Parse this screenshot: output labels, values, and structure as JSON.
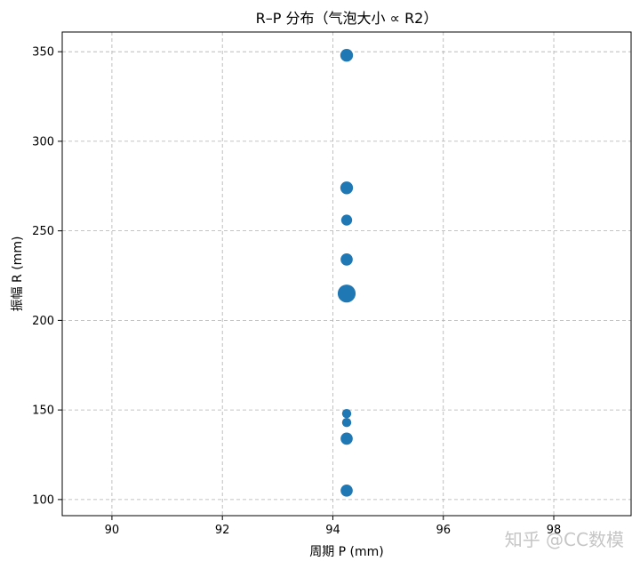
{
  "chart_data": {
    "type": "scatter",
    "title": "R–P 分布（气泡大小 ∝ R2）",
    "xlabel": "周期 P (mm)",
    "ylabel": "振幅 R (mm)",
    "xlim": [
      89.1,
      99.4
    ],
    "ylim": [
      91,
      361
    ],
    "xticks": [
      90,
      92,
      94,
      96,
      98
    ],
    "yticks": [
      100,
      150,
      200,
      250,
      300,
      350
    ],
    "grid": true,
    "marker_color": "#1f77b4",
    "points": [
      {
        "x": 94.25,
        "y": 348,
        "size": 1.1
      },
      {
        "x": 94.25,
        "y": 274,
        "size": 1.1
      },
      {
        "x": 94.25,
        "y": 256,
        "size": 0.95
      },
      {
        "x": 94.25,
        "y": 234,
        "size": 1.05
      },
      {
        "x": 94.25,
        "y": 215,
        "size": 1.55
      },
      {
        "x": 94.25,
        "y": 148,
        "size": 0.8
      },
      {
        "x": 94.25,
        "y": 143,
        "size": 0.8
      },
      {
        "x": 94.25,
        "y": 134,
        "size": 1.05
      },
      {
        "x": 94.25,
        "y": 105,
        "size": 1.05
      }
    ]
  },
  "watermark": "知乎 @CC数模"
}
